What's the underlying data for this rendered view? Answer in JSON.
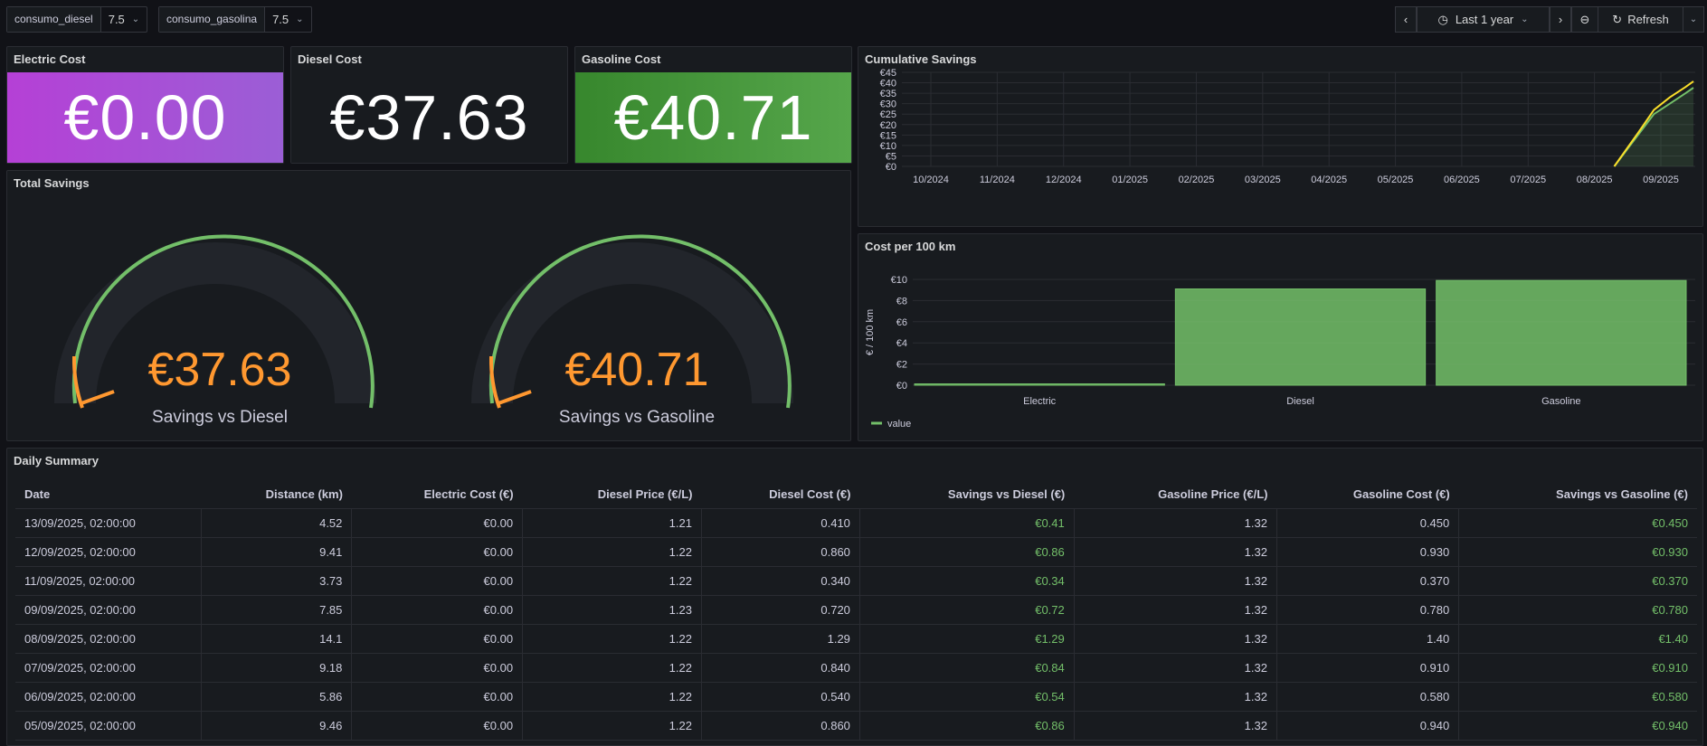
{
  "variables": [
    {
      "label": "consumo_diesel",
      "value": "7.5"
    },
    {
      "label": "consumo_gasolina",
      "value": "7.5"
    }
  ],
  "toolbar": {
    "time_range": "Last 1 year",
    "refresh_label": "Refresh"
  },
  "stats": [
    {
      "title": "Electric Cost",
      "value": "€0.00",
      "bg": "linear-gradient(90deg,#b540d6,#9b5ed6)"
    },
    {
      "title": "Diesel Cost",
      "value": "€37.63",
      "bg": "#181b1f"
    },
    {
      "title": "Gasoline Cost",
      "value": "€40.71",
      "bg": "linear-gradient(90deg,#37872d,#56a64b)"
    }
  ],
  "total_savings": {
    "title": "Total Savings",
    "gauges": [
      {
        "value": "€37.63",
        "label": "Savings vs Diesel"
      },
      {
        "value": "€40.71",
        "label": "Savings vs Gasoline"
      }
    ]
  },
  "colors": {
    "orange": "#ff9830",
    "green": "#73bf69",
    "yellow": "#fade2a"
  },
  "cumulative": {
    "title": "Cumulative Savings",
    "chart_data": {
      "type": "line",
      "yticks": [
        "€45",
        "€40",
        "€35",
        "€30",
        "€25",
        "€20",
        "€15",
        "€10",
        "€5",
        "€0"
      ],
      "xticks": [
        "10/2024",
        "11/2024",
        "12/2024",
        "01/2025",
        "02/2025",
        "03/2025",
        "04/2025",
        "05/2025",
        "06/2025",
        "07/2025",
        "08/2025",
        "09/2025"
      ],
      "ylim": [
        0,
        45
      ],
      "series": [
        {
          "color": "#73bf69",
          "x": [
            0.9,
            0.93,
            0.95,
            0.97,
            0.99,
            1.0
          ],
          "values": [
            0,
            15,
            25,
            30,
            35,
            37.63
          ]
        },
        {
          "color": "#fade2a",
          "x": [
            0.9,
            0.93,
            0.95,
            0.97,
            0.99,
            1.0
          ],
          "values": [
            0,
            16,
            27,
            33,
            38,
            40.71
          ]
        }
      ]
    }
  },
  "cost100": {
    "title": "Cost per 100 km",
    "chart_data": {
      "type": "bar",
      "categories": [
        "Electric",
        "Diesel",
        "Gasoline"
      ],
      "values": [
        0,
        9.1,
        9.9
      ],
      "ylim": [
        0,
        10
      ],
      "yticks": [
        "€10",
        "€8",
        "€6",
        "€4",
        "€2",
        "€0"
      ],
      "ylabel": "€ / 100 km",
      "legend": "value"
    }
  },
  "daily": {
    "title": "Daily Summary",
    "headers": [
      "Date",
      "Distance (km)",
      "Electric Cost (€)",
      "Diesel Price (€/L)",
      "Diesel Cost (€)",
      "Savings vs Diesel (€)",
      "Gasoline Price (€/L)",
      "Gasoline Cost (€)",
      "Savings vs Gasoline (€)"
    ],
    "rows": [
      [
        "13/09/2025, 02:00:00",
        "4.52",
        "€0.00",
        "1.21",
        "0.410",
        "€0.41",
        "1.32",
        "0.450",
        "€0.450"
      ],
      [
        "12/09/2025, 02:00:00",
        "9.41",
        "€0.00",
        "1.22",
        "0.860",
        "€0.86",
        "1.32",
        "0.930",
        "€0.930"
      ],
      [
        "11/09/2025, 02:00:00",
        "3.73",
        "€0.00",
        "1.22",
        "0.340",
        "€0.34",
        "1.32",
        "0.370",
        "€0.370"
      ],
      [
        "09/09/2025, 02:00:00",
        "7.85",
        "€0.00",
        "1.23",
        "0.720",
        "€0.72",
        "1.32",
        "0.780",
        "€0.780"
      ],
      [
        "08/09/2025, 02:00:00",
        "14.1",
        "€0.00",
        "1.22",
        "1.29",
        "€1.29",
        "1.32",
        "1.40",
        "€1.40"
      ],
      [
        "07/09/2025, 02:00:00",
        "9.18",
        "€0.00",
        "1.22",
        "0.840",
        "€0.84",
        "1.32",
        "0.910",
        "€0.910"
      ],
      [
        "06/09/2025, 02:00:00",
        "5.86",
        "€0.00",
        "1.22",
        "0.540",
        "€0.54",
        "1.32",
        "0.580",
        "€0.580"
      ],
      [
        "05/09/2025, 02:00:00",
        "9.46",
        "€0.00",
        "1.22",
        "0.860",
        "€0.86",
        "1.32",
        "0.940",
        "€0.940"
      ]
    ]
  }
}
